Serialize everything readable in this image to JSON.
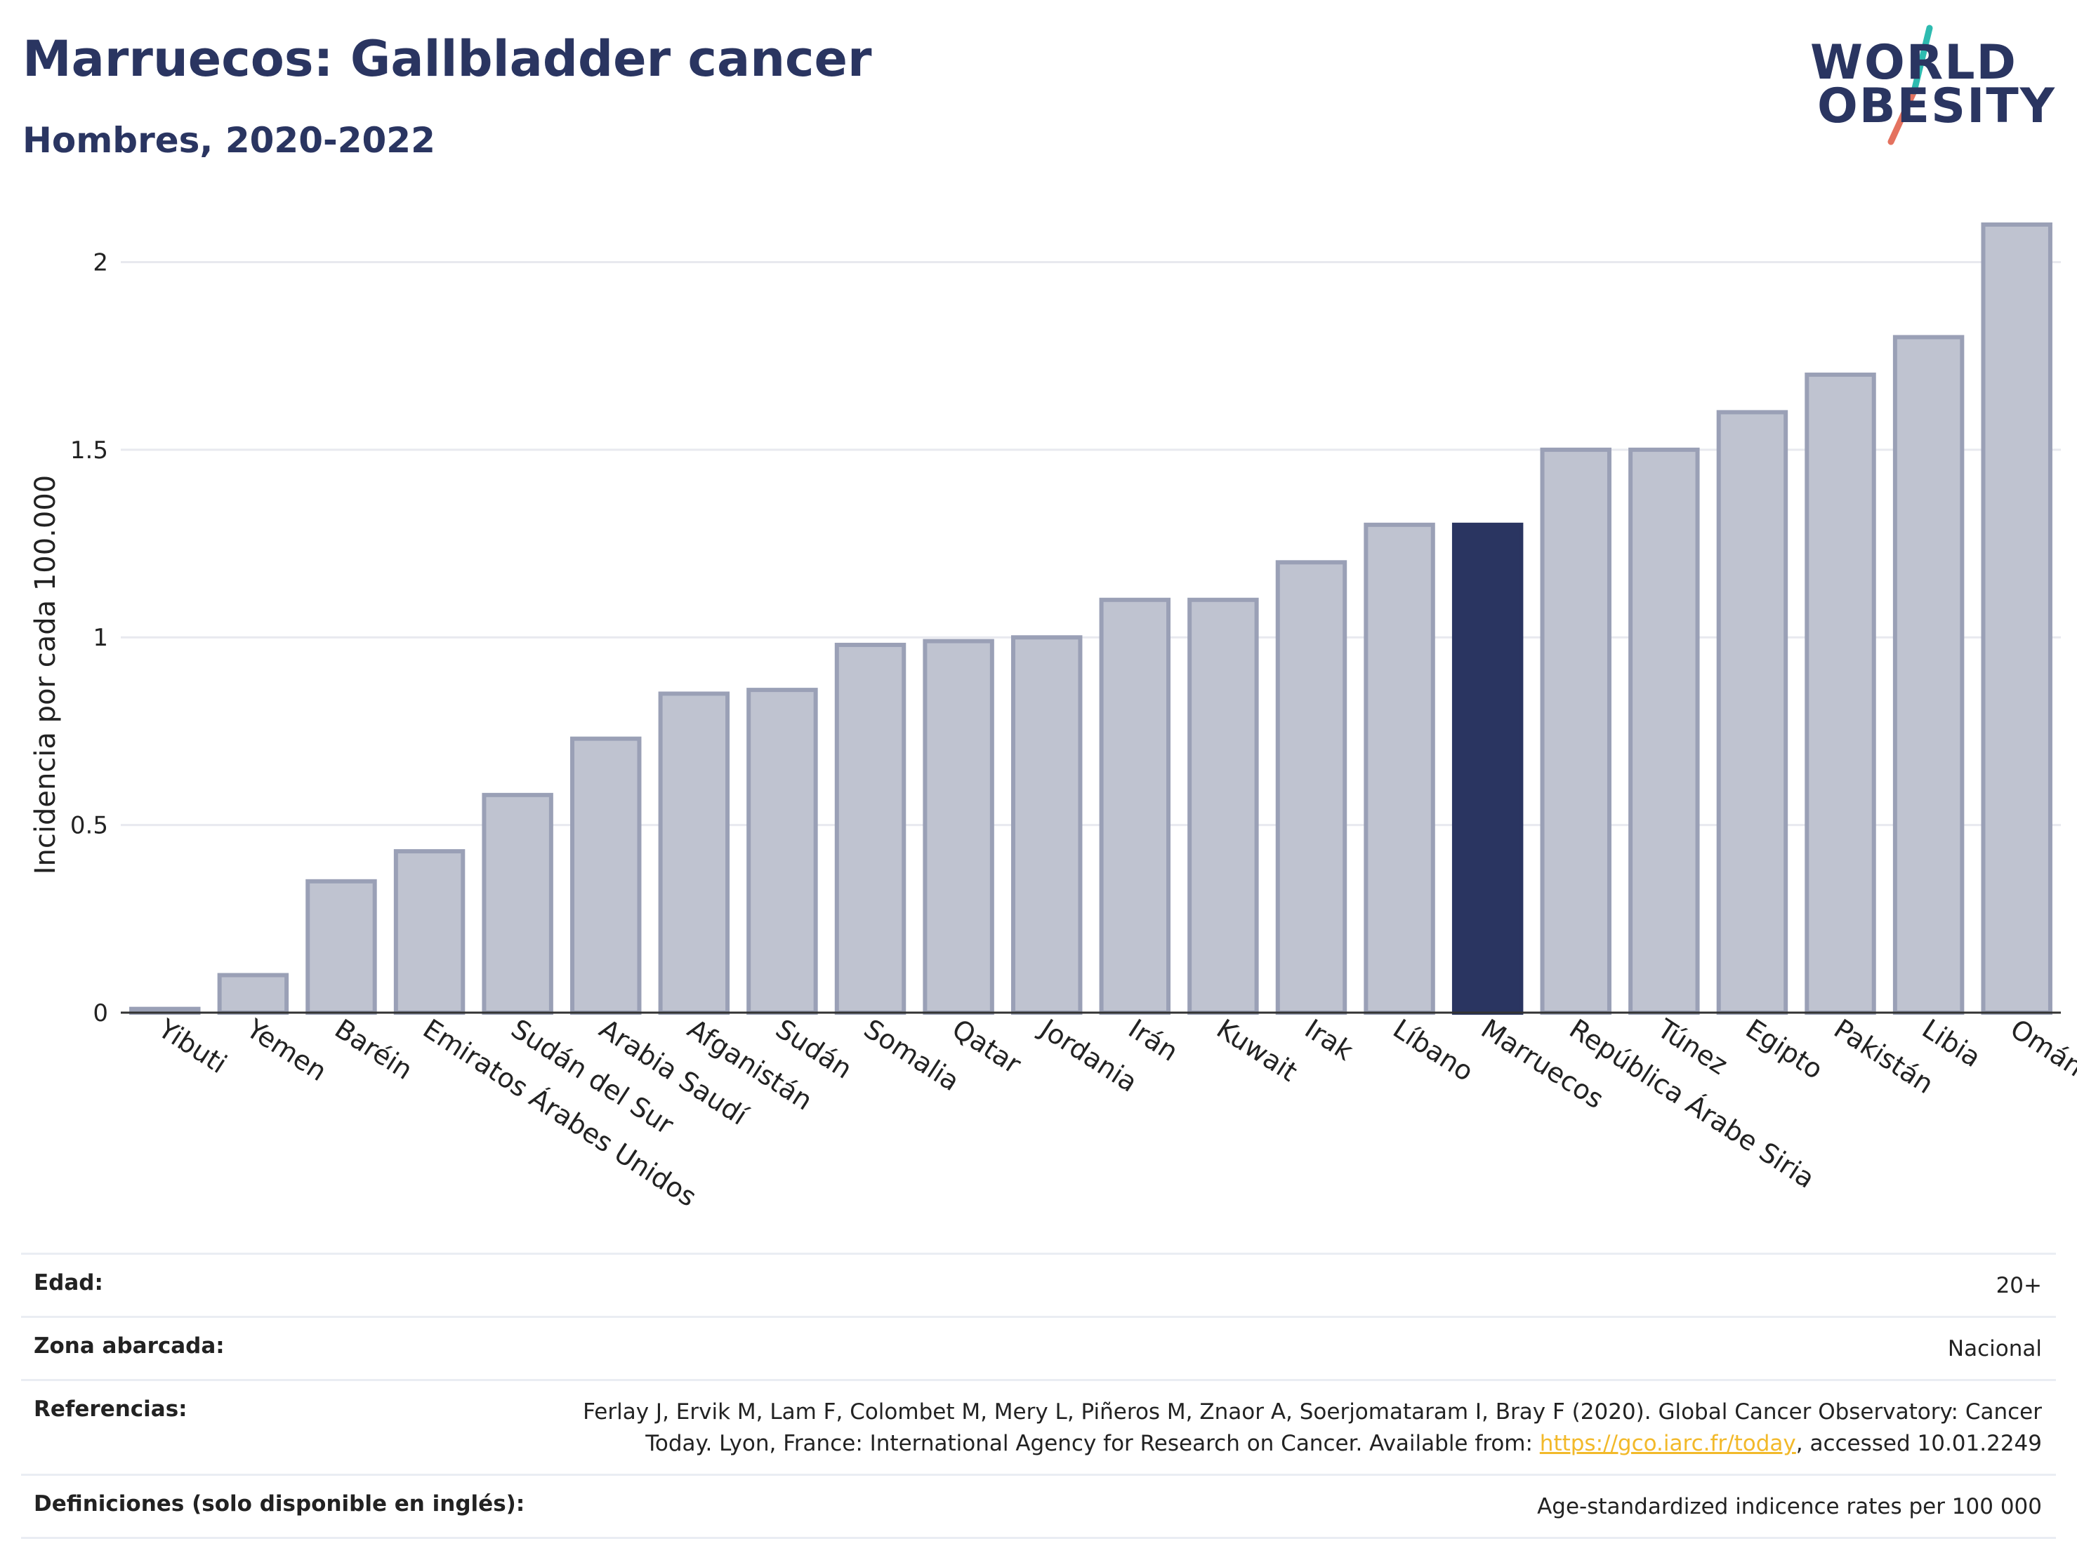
{
  "header": {
    "title": "Marruecos: Gallbladder cancer",
    "subtitle": "Hombres, 2020-2022"
  },
  "logo": {
    "line1": "WORLD",
    "line2": "OBESITY"
  },
  "chart_data": {
    "type": "bar",
    "title": "Marruecos: Gallbladder cancer",
    "subtitle": "Hombres, 2020-2022",
    "xlabel": "",
    "ylabel": "Incidencia por cada 100.000",
    "ylim": [
      0,
      2.1
    ],
    "yticks": [
      0,
      0.5,
      1,
      1.5,
      2
    ],
    "ytick_labels": [
      "0",
      "0.5",
      "1",
      "1.5",
      "2"
    ],
    "grid": true,
    "highlight": "Marruecos",
    "colors": {
      "bar": "#bfc3d0",
      "bar_edge": "#9aa0b6",
      "highlight": "#2a3561",
      "grid": "#e8e9ef"
    },
    "categories": [
      "Yibuti",
      "Yemen",
      "Baréin",
      "Emiratos Árabes Unidos",
      "Sudán del Sur",
      "Arabia Saudí",
      "Afganistán",
      "Sudán",
      "Somalia",
      "Qatar",
      "Jordania",
      "Irán",
      "Kuwait",
      "Irak",
      "Líbano",
      "Marruecos",
      "República Árabe Siria",
      "Túnez",
      "Egipto",
      "Pakistán",
      "Libia",
      "Omán"
    ],
    "values": [
      0.01,
      0.1,
      0.35,
      0.43,
      0.58,
      0.73,
      0.85,
      0.86,
      0.98,
      0.99,
      1.0,
      1.1,
      1.1,
      1.2,
      1.3,
      1.3,
      1.5,
      1.5,
      1.6,
      1.7,
      1.8,
      2.1
    ]
  },
  "meta": [
    {
      "key": "Edad:",
      "value": "20+"
    },
    {
      "key": "Zona abarcada:",
      "value": "Nacional"
    },
    {
      "key": "Referencias:",
      "value_before": "Ferlay J, Ervik M, Lam F, Colombet M, Mery L, Piñeros M, Znaor A, Soerjomataram I, Bray F (2020). Global Cancer Observatory: Cancer Today. Lyon, France: International Agency for Research on Cancer. Available from: ",
      "link": "https://gco.iarc.fr/today",
      "value_after": ", accessed 10.01.2249"
    },
    {
      "key": "Definiciones (solo disponible en inglés):",
      "value": "Age-standardized indicence rates per 100 000"
    }
  ]
}
